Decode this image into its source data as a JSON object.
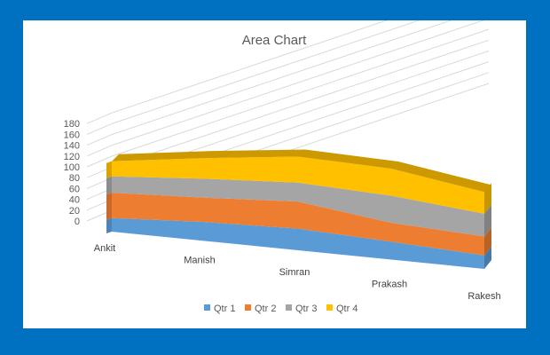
{
  "chart_data": {
    "type": "area",
    "stacked": true,
    "three_d": true,
    "title": "Area Chart",
    "categories": [
      "Ankit",
      "Manish",
      "Simran",
      "Prakash",
      "Rakesh"
    ],
    "series": [
      {
        "name": "Qtr 1",
        "color": "#5b9bd5",
        "values": [
          25,
          35,
          40,
          33,
          25
        ]
      },
      {
        "name": "Qtr 2",
        "color": "#ed7d31",
        "values": [
          47,
          45,
          50,
          35,
          35
        ]
      },
      {
        "name": "Qtr 3",
        "color": "#a5a5a5",
        "values": [
          30,
          35,
          35,
          50,
          42
        ]
      },
      {
        "name": "Qtr 4",
        "color": "#ffc000",
        "values": [
          28,
          38,
          48,
          50,
          40
        ]
      }
    ],
    "y_ticks": [
      "0",
      "20",
      "40",
      "60",
      "80",
      "100",
      "120",
      "140",
      "160",
      "180"
    ],
    "ylim": [
      0,
      180
    ],
    "grid": true,
    "legend_position": "bottom"
  }
}
